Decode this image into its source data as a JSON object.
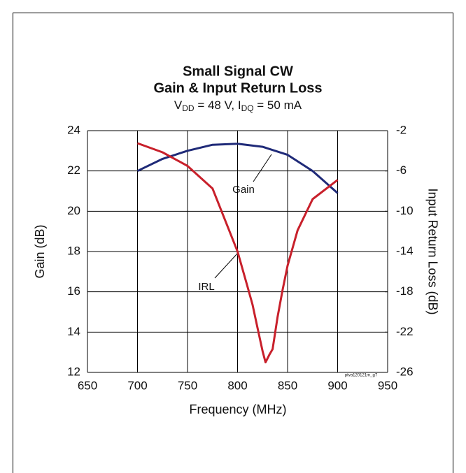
{
  "chart_data": {
    "type": "line",
    "title": "Small Signal CW",
    "title2": "Gain & Input Return Loss",
    "subtitle_parts": [
      "V",
      "DD",
      " = 48 V, I",
      "DQ",
      " = 50 mA"
    ],
    "xlabel": "Frequency (MHz)",
    "ylabel": "Gain (dB)",
    "y2label": "Input Return Loss (dB)",
    "footnote": "ptva120121m_g7",
    "xlim": [
      650,
      950
    ],
    "xticks": [
      650,
      700,
      750,
      800,
      850,
      900,
      950
    ],
    "ylim": [
      12,
      24
    ],
    "yticks": [
      12,
      14,
      16,
      18,
      20,
      22,
      24
    ],
    "y2lim": [
      -26,
      -2
    ],
    "y2ticks": [
      -26,
      -22,
      -18,
      -14,
      -10,
      -6,
      -2
    ],
    "grid": true,
    "series": [
      {
        "name": "Gain",
        "color": "#1f2a78",
        "axis": "y",
        "x": [
          700,
          725,
          750,
          775,
          800,
          825,
          850,
          875,
          900
        ],
        "values": [
          22.0,
          22.6,
          23.0,
          23.3,
          23.35,
          23.2,
          22.8,
          22.0,
          20.9
        ]
      },
      {
        "name": "IRL",
        "color": "#c8202b",
        "axis": "y2",
        "x": [
          700,
          725,
          750,
          775,
          800,
          810,
          815,
          820,
          825,
          828,
          832,
          835,
          840,
          845,
          850,
          860,
          875,
          900
        ],
        "values": [
          -3.25,
          -4.15,
          -5.5,
          -7.75,
          -14.0,
          -17.5,
          -19.3,
          -21.6,
          -23.9,
          -25.0,
          -24.2,
          -23.7,
          -20.5,
          -17.8,
          -15.4,
          -11.9,
          -8.8,
          -6.9
        ]
      }
    ]
  }
}
